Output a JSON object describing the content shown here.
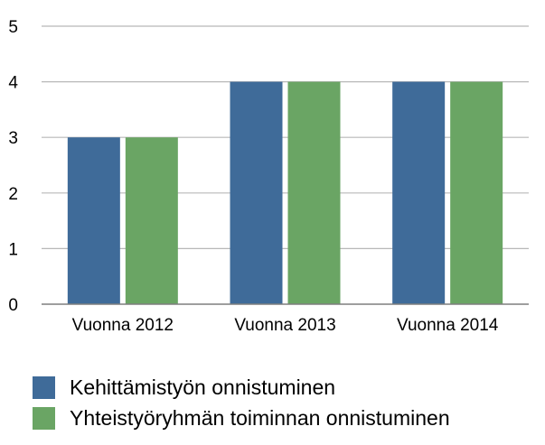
{
  "chart_data": {
    "type": "bar",
    "categories": [
      "Vuonna 2012",
      "Vuonna 2013",
      "Vuonna 2014"
    ],
    "series": [
      {
        "name": "Kehittämistyön onnistuminen",
        "values": [
          3,
          4,
          4
        ],
        "color": "#3f6b99"
      },
      {
        "name": "Yhteistyöryhmän toiminnan onnistuminen",
        "values": [
          3,
          4,
          4
        ],
        "color": "#6aa564"
      }
    ],
    "ylim": [
      0,
      5
    ],
    "yticks": [
      "0",
      "1",
      "2",
      "3",
      "4",
      "5"
    ],
    "grid": true,
    "legend_position": "bottom-left",
    "gridline_color": "#b8b8b8",
    "axis_color": "#7f7f7f"
  }
}
